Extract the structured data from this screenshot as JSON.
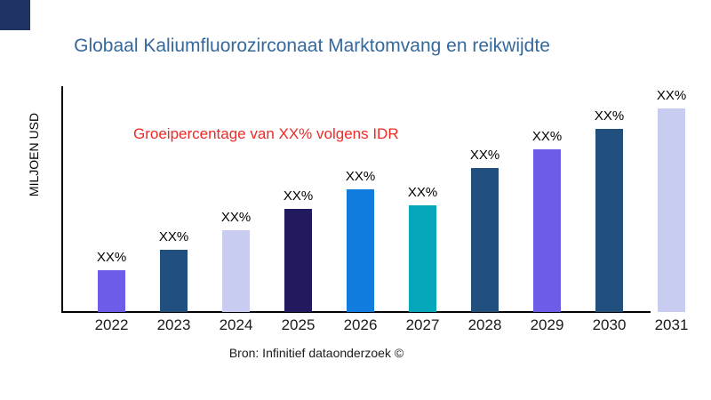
{
  "logo": {
    "color": "#1E3361"
  },
  "header": {
    "title": "Globaal Kaliumfluorozirconaat Marktomvang en reikwijdte",
    "title_color": "#35689B"
  },
  "annotation": {
    "text": "Groeipercentage van XX% volgens IDR",
    "color": "#EE2A26"
  },
  "footer": {
    "text": "Bron: Infinitief dataonderzoek ©"
  },
  "chart_data": {
    "type": "bar",
    "title": "Globaal Kaliumfluorozirconaat Marktomvang en reikwijdte",
    "xlabel": "",
    "ylabel": "MILJOEN USD",
    "categories": [
      "2022",
      "2023",
      "2024",
      "2025",
      "2026",
      "2027",
      "2028",
      "2029",
      "2030",
      "2031"
    ],
    "values": [
      47,
      70,
      92,
      116,
      138,
      120,
      162,
      183,
      206,
      229
    ],
    "values_note": "relative bar heights (px); numeric values not shown in chart, all data labels are placeholder XX%",
    "bar_labels": [
      "XX%",
      "XX%",
      "XX%",
      "XX%",
      "XX%",
      "XX%",
      "XX%",
      "XX%",
      "XX%",
      "XX%"
    ],
    "bar_colors": [
      "#6D5CE8",
      "#21507F",
      "#C9CCF1",
      "#211A5E",
      "#107CDE",
      "#04A6BA",
      "#21507F",
      "#6D5CE8",
      "#21507F",
      "#C9CCF1"
    ],
    "annotation": "Groeipercentage van XX% volgens IDR",
    "grid": false,
    "legend": false,
    "axis_color": "#000000"
  }
}
